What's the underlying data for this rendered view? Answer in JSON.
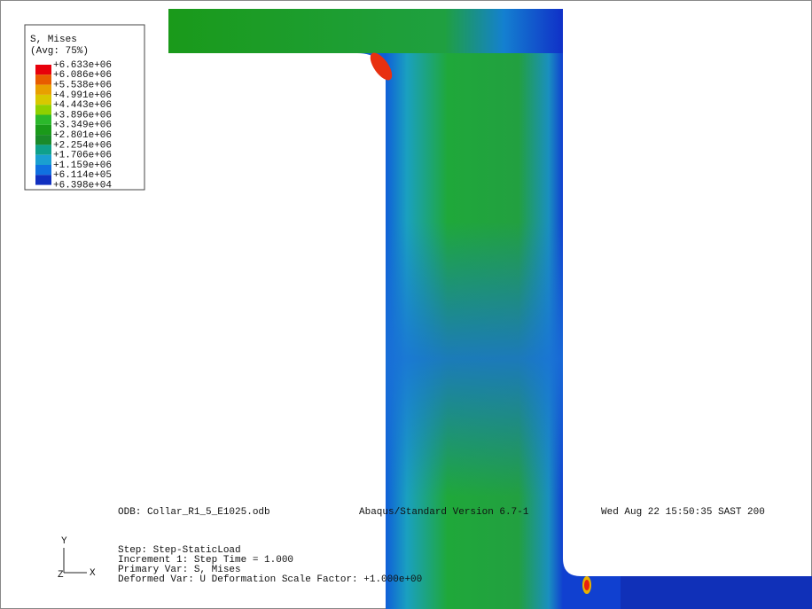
{
  "legend": {
    "title": "S, Mises",
    "subtitle": "(Avg: 75%)",
    "labels": [
      "+6.633e+06",
      "+6.086e+06",
      "+5.538e+06",
      "+4.991e+06",
      "+4.443e+06",
      "+3.896e+06",
      "+3.349e+06",
      "+2.801e+06",
      "+2.254e+06",
      "+1.706e+06",
      "+1.159e+06",
      "+6.114e+05",
      "+6.398e+04"
    ]
  },
  "info": {
    "odb": "ODB: Collar_R1_5_E1025.odb",
    "version": "Abaqus/Standard Version 6.7-1",
    "date": "Wed Aug 22 15:50:35 SAST 200",
    "step": "Step: Step-StaticLoad",
    "increment": "Increment    1: Step Time =    1.000",
    "primary_var": "Primary Var: S, Mises",
    "deformed_var": "Deformed Var: U   Deformation Scale Factor: +1.000e+00"
  },
  "triad": {
    "y": "Y",
    "z": "Z",
    "x": "X"
  }
}
